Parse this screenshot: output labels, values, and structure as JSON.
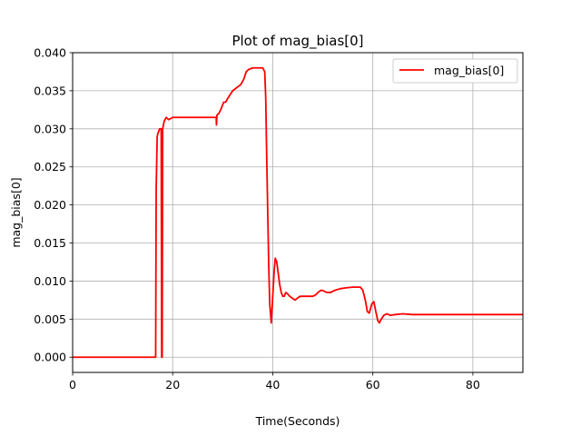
{
  "chart_data": {
    "type": "line",
    "title": "Plot of mag_bias[0]",
    "xlabel": "Time(Seconds)",
    "ylabel": "mag_bias[0]",
    "xlim": [
      0,
      90
    ],
    "ylim": [
      -0.002,
      0.04
    ],
    "xticks": [
      0,
      20,
      40,
      60,
      80
    ],
    "yticks": [
      0.0,
      0.005,
      0.01,
      0.015,
      0.02,
      0.025,
      0.03,
      0.035,
      0.04
    ],
    "xtick_labels": [
      "0",
      "20",
      "40",
      "60",
      "80"
    ],
    "ytick_labels": [
      "0.000",
      "0.005",
      "0.010",
      "0.015",
      "0.020",
      "0.025",
      "0.030",
      "0.035",
      "0.040"
    ],
    "grid": true,
    "legend_position": "top-right",
    "series": [
      {
        "name": "mag_bias[0]",
        "color": "#ff0000",
        "points": [
          [
            0,
            0.0
          ],
          [
            16.5,
            0.0
          ],
          [
            16.6,
            0.0
          ],
          [
            16.7,
            0.022
          ],
          [
            16.9,
            0.029
          ],
          [
            17.1,
            0.0295
          ],
          [
            17.4,
            0.03
          ],
          [
            17.7,
            0.03
          ],
          [
            17.8,
            0.0
          ],
          [
            17.9,
            0.0
          ],
          [
            18.0,
            0.03
          ],
          [
            18.3,
            0.031
          ],
          [
            18.7,
            0.0315
          ],
          [
            19.2,
            0.0312
          ],
          [
            20.0,
            0.0315
          ],
          [
            22.0,
            0.0315
          ],
          [
            25.0,
            0.0315
          ],
          [
            28.7,
            0.0315
          ],
          [
            28.75,
            0.0305
          ],
          [
            28.85,
            0.0318
          ],
          [
            29.2,
            0.032
          ],
          [
            29.6,
            0.0325
          ],
          [
            30.2,
            0.0335
          ],
          [
            30.6,
            0.0335
          ],
          [
            31.0,
            0.034
          ],
          [
            31.5,
            0.0345
          ],
          [
            32.0,
            0.035
          ],
          [
            33.0,
            0.0355
          ],
          [
            33.6,
            0.0358
          ],
          [
            34.2,
            0.0365
          ],
          [
            34.7,
            0.0375
          ],
          [
            35.2,
            0.0378
          ],
          [
            36.0,
            0.038
          ],
          [
            37.2,
            0.038
          ],
          [
            38.0,
            0.038
          ],
          [
            38.4,
            0.0375
          ],
          [
            38.6,
            0.034
          ],
          [
            38.8,
            0.026
          ],
          [
            39.0,
            0.019
          ],
          [
            39.2,
            0.012
          ],
          [
            39.4,
            0.007
          ],
          [
            39.7,
            0.0045
          ],
          [
            40.0,
            0.008
          ],
          [
            40.3,
            0.0115
          ],
          [
            40.5,
            0.013
          ],
          [
            40.8,
            0.0125
          ],
          [
            41.1,
            0.011
          ],
          [
            41.4,
            0.0095
          ],
          [
            41.7,
            0.0085
          ],
          [
            42.0,
            0.008
          ],
          [
            42.3,
            0.008
          ],
          [
            42.6,
            0.0085
          ],
          [
            43.0,
            0.0083
          ],
          [
            43.4,
            0.008
          ],
          [
            44.0,
            0.0077
          ],
          [
            44.5,
            0.0075
          ],
          [
            45.0,
            0.0078
          ],
          [
            45.5,
            0.008
          ],
          [
            46.0,
            0.008
          ],
          [
            47.0,
            0.008
          ],
          [
            48.0,
            0.008
          ],
          [
            48.6,
            0.0082
          ],
          [
            49.2,
            0.0086
          ],
          [
            49.7,
            0.0088
          ],
          [
            50.2,
            0.0087
          ],
          [
            50.8,
            0.0085
          ],
          [
            51.5,
            0.0085
          ],
          [
            52.5,
            0.0088
          ],
          [
            53.5,
            0.009
          ],
          [
            54.5,
            0.0091
          ],
          [
            56.0,
            0.0092
          ],
          [
            57.5,
            0.0092
          ],
          [
            58.0,
            0.0088
          ],
          [
            58.5,
            0.0075
          ],
          [
            58.9,
            0.006
          ],
          [
            59.3,
            0.0058
          ],
          [
            59.8,
            0.007
          ],
          [
            60.2,
            0.0073
          ],
          [
            60.6,
            0.006
          ],
          [
            61.0,
            0.0048
          ],
          [
            61.3,
            0.0045
          ],
          [
            61.7,
            0.005
          ],
          [
            62.2,
            0.0055
          ],
          [
            62.8,
            0.0057
          ],
          [
            63.5,
            0.0055
          ],
          [
            64.5,
            0.0056
          ],
          [
            66.0,
            0.0057
          ],
          [
            68.0,
            0.0056
          ],
          [
            72.0,
            0.0056
          ],
          [
            80.0,
            0.0056
          ],
          [
            90.0,
            0.0056
          ]
        ]
      }
    ]
  }
}
